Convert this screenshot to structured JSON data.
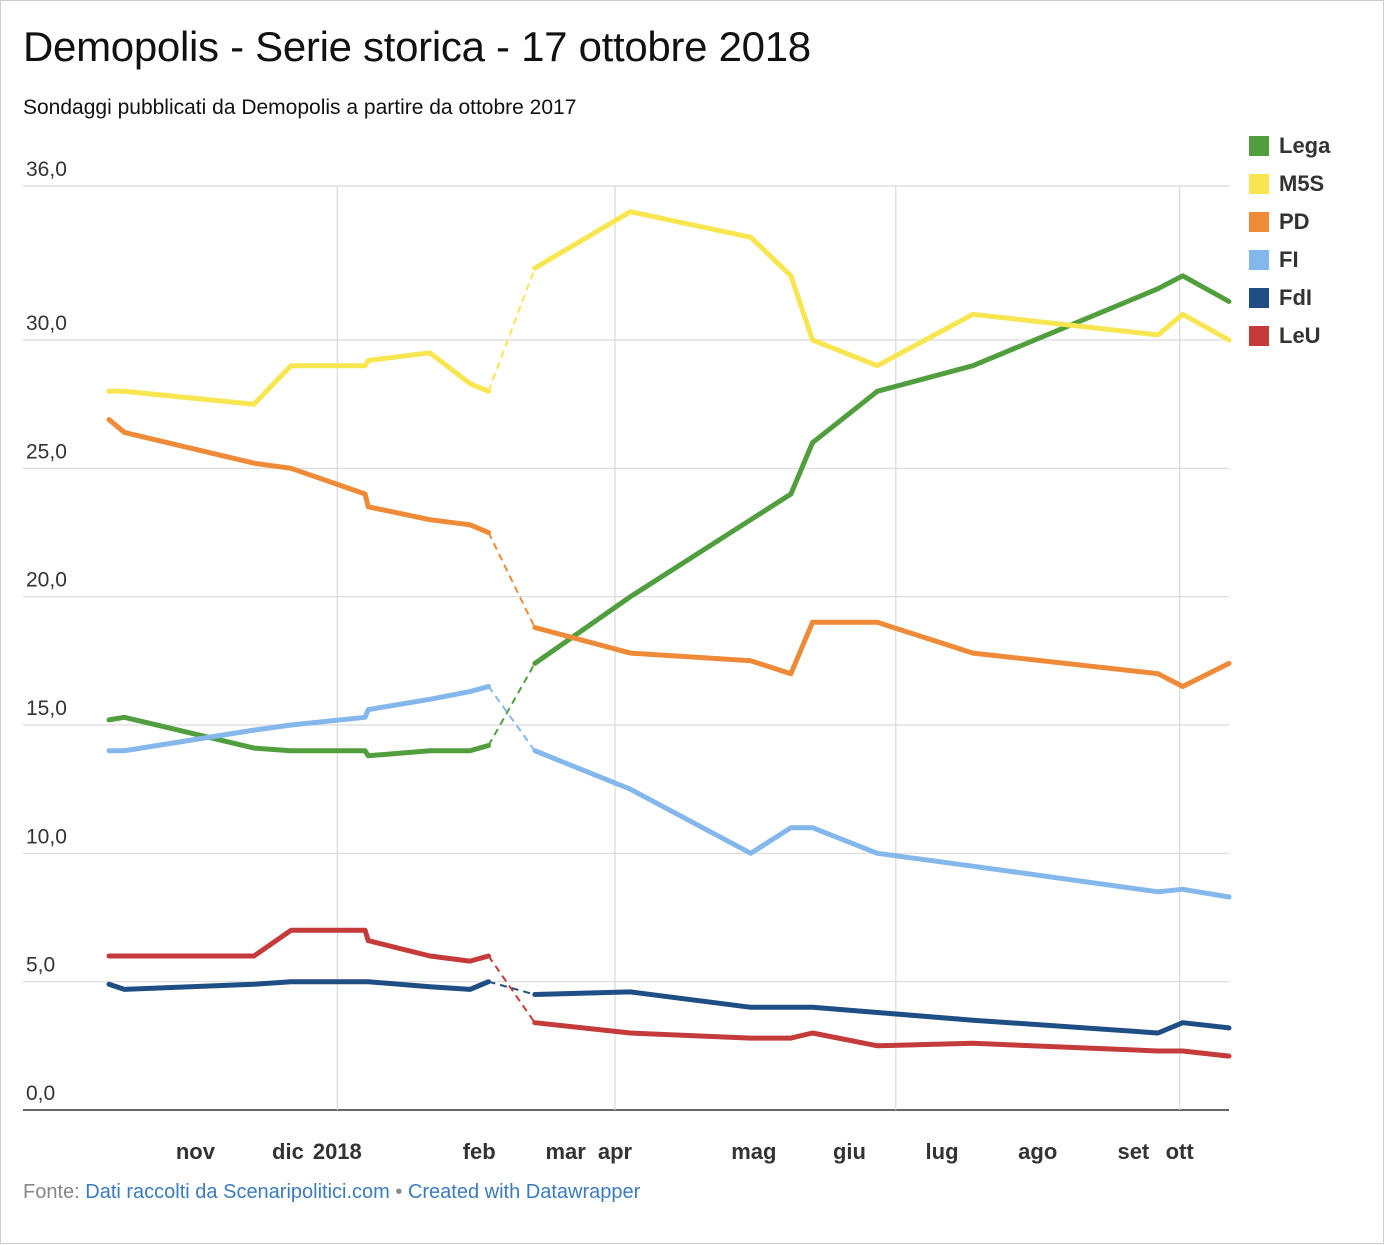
{
  "header": {
    "title": "Demopolis - Serie storica - 17 ottobre 2018",
    "subtitle": "Sondaggi pubblicati da Demopolis a partire da ottobre 2017"
  },
  "footer": {
    "prefix": "Fonte: ",
    "source_link": "Dati raccolti da Scenaripolitici.com",
    "separator": " • ",
    "credit_link": "Created with Datawrapper"
  },
  "chart_data": {
    "type": "line",
    "title": "Demopolis - Serie storica - 17 ottobre 2018",
    "subtitle": "Sondaggi pubblicati da Demopolis a partire da ottobre 2017",
    "ylim": [
      0,
      36
    ],
    "yticks": [
      "0,0",
      "5,0",
      "10,0",
      "15,0",
      "20,0",
      "25,0",
      "30,0",
      "36,0"
    ],
    "ytick_values": [
      0,
      5,
      10,
      15,
      20,
      25,
      30,
      36
    ],
    "xticks": [
      "nov",
      "dic",
      "2018",
      "feb",
      "mar",
      "apr",
      "mag",
      "giu",
      "lug",
      "ago",
      "set",
      "ott"
    ],
    "xtick_dates": [
      "2017-11-01",
      "2017-12-01",
      "2018-01-01",
      "2018-02-01",
      "2018-03-01",
      "2018-04-01",
      "2018-05-01",
      "2018-06-01",
      "2018-07-01",
      "2018-08-01",
      "2018-09-01",
      "2018-10-01"
    ],
    "xlim": [
      "2017-10-19",
      "2018-10-17"
    ],
    "grid": true,
    "legend_position": "right",
    "gap_dashed_between": [
      "2018-02-19",
      "2018-03-06"
    ],
    "x": [
      "2017-10-19",
      "2017-10-24",
      "2017-12-05",
      "2017-12-17",
      "2018-01-10",
      "2018-01-11",
      "2018-01-31",
      "2018-02-13",
      "2018-02-19",
      "2018-03-06",
      "2018-04-06",
      "2018-05-15",
      "2018-05-28",
      "2018-06-04",
      "2018-06-25",
      "2018-07-26",
      "2018-09-24",
      "2018-10-02",
      "2018-10-17"
    ],
    "series": [
      {
        "name": "Lega",
        "color": "#519e3e",
        "values": [
          15.2,
          15.3,
          14.1,
          14.0,
          14.0,
          13.8,
          14.0,
          14.0,
          14.2,
          17.4,
          20.0,
          23.0,
          24.0,
          26.0,
          28.0,
          29.0,
          32.0,
          32.5,
          31.5
        ]
      },
      {
        "name": "M5S",
        "color": "#f8e651",
        "values": [
          28.0,
          28.0,
          27.5,
          29.0,
          29.0,
          29.2,
          29.5,
          28.3,
          28.0,
          32.8,
          35.0,
          34.0,
          32.5,
          30.0,
          29.0,
          31.0,
          30.2,
          31.0,
          30.0
        ]
      },
      {
        "name": "PD",
        "color": "#ef8a38",
        "values": [
          26.9,
          26.4,
          25.2,
          25.0,
          24.0,
          23.5,
          23.0,
          22.8,
          22.5,
          18.8,
          17.8,
          17.5,
          17.0,
          19.0,
          19.0,
          17.8,
          17.0,
          16.5,
          17.4
        ]
      },
      {
        "name": "FI",
        "color": "#84b7ec",
        "values": [
          14.0,
          14.0,
          14.8,
          15.0,
          15.3,
          15.6,
          16.0,
          16.3,
          16.5,
          14.0,
          12.5,
          10.0,
          11.0,
          11.0,
          10.0,
          9.5,
          8.5,
          8.6,
          8.3
        ]
      },
      {
        "name": "FdI",
        "color": "#1f4e85",
        "values": [
          4.9,
          4.7,
          4.9,
          5.0,
          5.0,
          5.0,
          4.8,
          4.7,
          5.0,
          4.5,
          4.6,
          4.0,
          4.0,
          4.0,
          3.8,
          3.5,
          3.0,
          3.4,
          3.2
        ]
      },
      {
        "name": "LeU",
        "color": "#c43b39",
        "values": [
          6.0,
          6.0,
          6.0,
          7.0,
          7.0,
          6.6,
          6.0,
          5.8,
          6.0,
          3.4,
          3.0,
          2.8,
          2.8,
          3.0,
          2.5,
          2.6,
          2.3,
          2.3,
          2.1
        ]
      }
    ]
  }
}
